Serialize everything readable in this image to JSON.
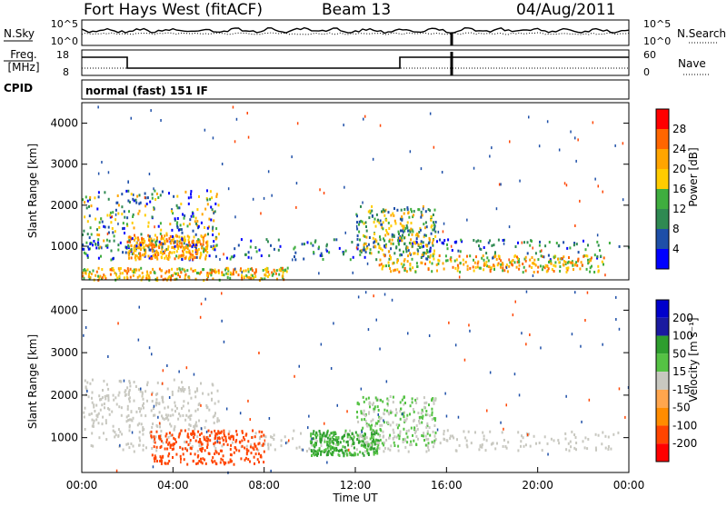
{
  "header": {
    "station": "Fort Hays West (fitACF)",
    "beam": "Beam 13",
    "date": "04/Aug/2011"
  },
  "top_panels": {
    "nsky_label": "N.Sky",
    "nsky_ticks": [
      "10^5",
      "10^0"
    ],
    "nsearch_label": "N.Search",
    "nsearch_ticks": [
      "10^5",
      "10^0"
    ],
    "freq_label": "Freq.",
    "freq_unit": "[MHz]",
    "freq_ticks": [
      "18",
      "8"
    ],
    "nave_label": "Nave",
    "nave_ticks": [
      "60",
      "0"
    ],
    "cpid_label": "CPID",
    "cpid_text": "normal (fast) 151 IF"
  },
  "colors": {
    "power_scale": [
      "#0000ff",
      "#1e4fa8",
      "#2f8a52",
      "#3fae3f",
      "#ffcc00",
      "#ffa500",
      "#ff6600",
      "#ff0000"
    ],
    "velocity_scale": [
      "#ff0000",
      "#ff4500",
      "#ff8c00",
      "#ffa64d",
      "#c8c8c0",
      "#55c244",
      "#2e9e2e",
      "#1a1aa0",
      "#0000cc"
    ]
  },
  "chart_data": [
    {
      "type": "heatmap",
      "panel": "power",
      "xlabel": "",
      "ylabel": "Slant Range [km]",
      "x_range": [
        "00:00",
        "24:00"
      ],
      "ylim": [
        180,
        4500
      ],
      "y_ticks": [
        1000,
        2000,
        3000,
        4000
      ],
      "colorbar_label": "Power [dB]",
      "colorbar_ticks": [
        4,
        8,
        12,
        16,
        20,
        24,
        28
      ],
      "features": [
        {
          "region": "ionospheric band",
          "time": [
            "00:00",
            "24:00"
          ],
          "range_km": [
            700,
            1200
          ],
          "power_dB": [
            4,
            16
          ]
        },
        {
          "region": "near-range ground scatter",
          "time": [
            "00:00",
            "09:00"
          ],
          "range_km": [
            200,
            500
          ],
          "power_dB": [
            16,
            28
          ]
        },
        {
          "region": "strong patch",
          "time": [
            "02:00",
            "05:30"
          ],
          "range_km": [
            700,
            1300
          ],
          "power_dB": [
            20,
            28
          ]
        },
        {
          "region": "arc from 2300 km",
          "time": [
            "00:00",
            "06:00"
          ],
          "range_km": [
            900,
            2400
          ],
          "power_dB": [
            4,
            24
          ]
        },
        {
          "region": "evening arc",
          "time": [
            "12:00",
            "15:30"
          ],
          "range_km": [
            800,
            2000
          ],
          "power_dB": [
            8,
            24
          ]
        },
        {
          "region": "late ground scatter",
          "time": [
            "13:00",
            "23:00"
          ],
          "range_km": [
            400,
            800
          ],
          "power_dB": [
            16,
            28
          ]
        }
      ]
    },
    {
      "type": "heatmap",
      "panel": "velocity",
      "xlabel": "Time UT",
      "ylabel": "Slant Range [km]",
      "x_ticks": [
        "00:00",
        "04:00",
        "08:00",
        "12:00",
        "16:00",
        "20:00",
        "00:00"
      ],
      "ylim": [
        180,
        4500
      ],
      "y_ticks": [
        1000,
        2000,
        3000,
        4000
      ],
      "colorbar_label": "Velocity [m s⁻¹]",
      "colorbar_ticks": [
        200,
        100,
        50,
        15,
        -15,
        -50,
        -100,
        -200
      ],
      "features": [
        {
          "region": "ground scatter",
          "time": [
            "00:00",
            "24:00"
          ],
          "range_km": [
            700,
            1200
          ],
          "velocity_ms": [
            -15,
            15
          ]
        },
        {
          "region": "arc ground scatter",
          "time": [
            "00:00",
            "06:00"
          ],
          "range_km": [
            1200,
            2400
          ],
          "velocity_ms": [
            -15,
            15
          ]
        },
        {
          "region": "negative flow",
          "time": [
            "03:00",
            "08:00"
          ],
          "range_km": [
            400,
            1200
          ],
          "velocity_ms": [
            -100,
            -50
          ]
        },
        {
          "region": "positive flow",
          "time": [
            "10:00",
            "13:00"
          ],
          "range_km": [
            600,
            1200
          ],
          "velocity_ms": [
            15,
            100
          ]
        },
        {
          "region": "evening arc",
          "time": [
            "12:00",
            "15:30"
          ],
          "range_km": [
            800,
            2000
          ],
          "velocity_ms": [
            -15,
            50
          ]
        }
      ]
    }
  ]
}
